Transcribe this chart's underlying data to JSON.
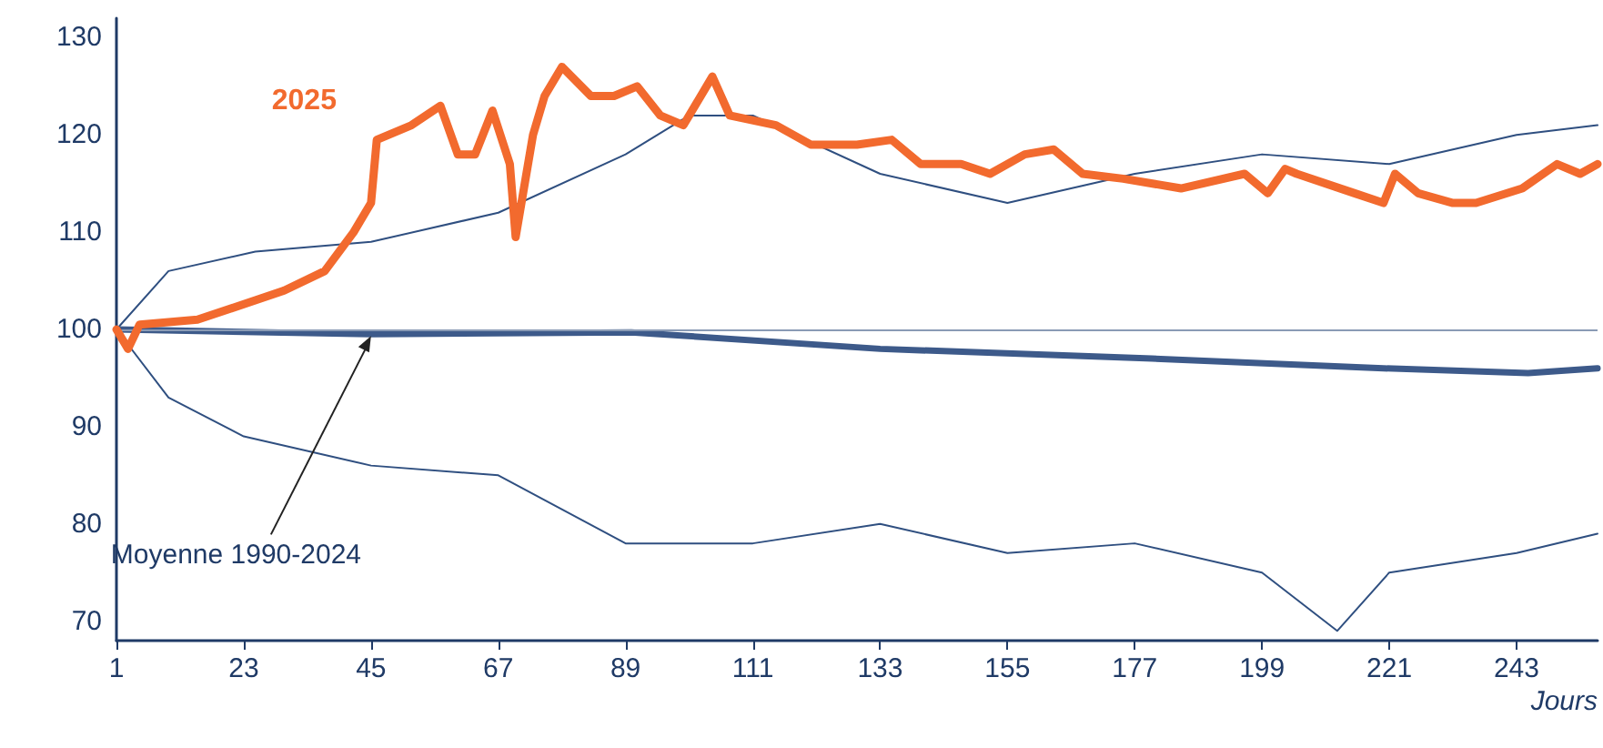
{
  "chart_data": {
    "type": "line",
    "xlabel": "Jours",
    "xlim": [
      1,
      257
    ],
    "xticks": [
      1,
      23,
      45,
      67,
      89,
      111,
      133,
      155,
      177,
      199,
      221,
      243
    ],
    "ylim": [
      68,
      132
    ],
    "yticks": [
      70,
      80,
      90,
      100,
      110,
      120,
      130
    ],
    "grid": false,
    "legend": false,
    "marker": "none",
    "line_style": "solid",
    "ref_lines": [
      {
        "axis": "y",
        "value": 100,
        "color": "#8a9bb5"
      }
    ],
    "annotations": [
      {
        "text": "Moyenne 1990-2024",
        "x": 45,
        "y": 99.5
      }
    ],
    "series": [
      {
        "color": "#2f4f80",
        "x": [
          1,
          10,
          25,
          45,
          67,
          89,
          100,
          111,
          133,
          155,
          177,
          199,
          221,
          243,
          257
        ],
        "values": [
          100,
          106,
          108,
          109,
          112,
          118,
          122,
          122,
          116,
          113,
          116,
          118,
          117,
          120,
          121
        ]
      },
      {
        "color": "#2f4f80",
        "x": [
          1,
          10,
          23,
          45,
          67,
          89,
          111,
          133,
          155,
          177,
          199,
          212,
          221,
          243,
          257
        ],
        "values": [
          100,
          93,
          89,
          86,
          85,
          78,
          78,
          80,
          77,
          78,
          75,
          69,
          75,
          77,
          79
        ]
      },
      {
        "color": "#3d5a8a",
        "x": [
          1,
          45,
          90,
          133,
          180,
          220,
          245,
          257
        ],
        "values": [
          100,
          99.5,
          99.7,
          98,
          97,
          96,
          95.5,
          96
        ]
      },
      {
        "name": "2025",
        "color": "#f26a2e",
        "x": [
          1,
          3,
          5,
          15,
          25,
          30,
          37,
          42,
          45,
          46,
          52,
          57,
          60,
          63,
          66,
          69,
          70,
          73,
          75,
          78,
          83,
          87,
          91,
          95,
          99,
          104,
          107,
          115,
          121,
          129,
          135,
          140,
          147,
          152,
          158,
          163,
          168,
          175,
          185,
          196,
          200,
          203,
          205,
          215,
          220,
          222,
          226,
          232,
          236,
          244,
          250,
          254,
          257
        ],
        "values": [
          100,
          98,
          100.5,
          101,
          103,
          104,
          106,
          110,
          113,
          119.5,
          121,
          123,
          118,
          118,
          122.5,
          117,
          109.5,
          120,
          124,
          127,
          124,
          124,
          125,
          122,
          121,
          126,
          122,
          121,
          119,
          119,
          119.5,
          117,
          117,
          116,
          118,
          118.5,
          116,
          115.5,
          114.5,
          116,
          114,
          116.5,
          116,
          114,
          113,
          116,
          114,
          113,
          113,
          114.5,
          117,
          116,
          117
        ]
      }
    ]
  }
}
